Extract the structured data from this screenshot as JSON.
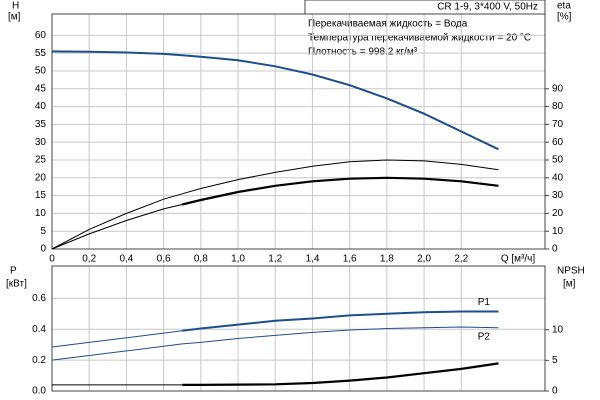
{
  "chart_data": [
    {
      "type": "line",
      "xlabel": "Q [м³/ч]",
      "ylabel": [
        "H",
        "[м]"
      ],
      "y2label": [
        "eta",
        "[%]"
      ],
      "title": "CR 1-9, 3*400 V, 50Hz",
      "annotations": [
        "Перекачиваемая жидкость = Вода",
        "Температура перекачиваемой жидкости = 20 °C",
        "Плотность = 998.2 кг/м³"
      ],
      "xlim": [
        0,
        2.65
      ],
      "xticks": [
        0,
        {
          "value": 0.2,
          "label": "0,2"
        },
        {
          "value": 0.4,
          "label": "0,4"
        },
        {
          "value": 0.6,
          "label": "0,6"
        },
        {
          "value": 0.8,
          "label": "0,8"
        },
        {
          "value": 1.0,
          "label": "1,0"
        },
        {
          "value": 1.2,
          "label": "1,2"
        },
        {
          "value": 1.4,
          "label": "1,4"
        },
        {
          "value": 1.6,
          "label": "1,6"
        },
        {
          "value": 1.8,
          "label": "1,8"
        },
        {
          "value": 2.0,
          "label": "2,0"
        },
        {
          "value": 2.2,
          "label": "2,2"
        }
      ],
      "ylim": [
        0,
        66
      ],
      "yticks": [
        0,
        5,
        10,
        15,
        20,
        25,
        30,
        35,
        40,
        45,
        50,
        55,
        60
      ],
      "y2lim": [
        0,
        132
      ],
      "y2ticks": [
        0,
        10,
        20,
        30,
        40,
        50,
        60,
        70,
        80,
        90
      ],
      "grid": true,
      "x": [
        0,
        0.2,
        0.4,
        0.6,
        0.7,
        0.8,
        1.0,
        1.2,
        1.4,
        1.6,
        1.8,
        2.0,
        2.2,
        2.4
      ],
      "series": [
        {
          "color": "#1f4e8c",
          "width": 2,
          "values": [
            55.5,
            55.4,
            55.2,
            54.8,
            54.4,
            54,
            53,
            51.3,
            49,
            46,
            42.3,
            38,
            33,
            28
          ]
        },
        {
          "color": "#000000",
          "width": 1,
          "axis": "y2",
          "values": [
            0,
            11,
            20,
            28,
            31,
            34,
            39,
            43,
            46.5,
            49,
            50,
            49.5,
            47.5,
            44.5
          ]
        },
        {
          "color": "#000000",
          "width": 1,
          "axis": "y2",
          "values": [
            0,
            8.5,
            16,
            22.5,
            25,
            null,
            null,
            null,
            null,
            null,
            null,
            null,
            null,
            null
          ]
        },
        {
          "color": "#000000",
          "width": 2.2,
          "axis": "y2",
          "values": [
            null,
            null,
            null,
            null,
            25,
            27.5,
            32,
            35.5,
            38,
            39.5,
            40,
            39.5,
            38,
            35.5
          ]
        }
      ]
    },
    {
      "type": "line",
      "ylabel": [
        "P",
        "[кВт]"
      ],
      "y2label": [
        "NPSH",
        "[м]"
      ],
      "xlim": [
        0,
        2.65
      ],
      "ylim": [
        0,
        0.81
      ],
      "yticks": [
        {
          "value": 0,
          "label": "0.0"
        },
        0.2,
        0.4,
        0.6
      ],
      "y2lim": [
        0,
        20.4
      ],
      "y2ticks": [
        0,
        5,
        10
      ],
      "grid": true,
      "x": [
        0,
        0.2,
        0.4,
        0.6,
        0.7,
        0.8,
        1.0,
        1.2,
        1.4,
        1.6,
        1.8,
        2.0,
        2.2,
        2.4
      ],
      "series": [
        {
          "color": "#1f4e8c",
          "width": 1,
          "values": [
            0.285,
            0.315,
            0.345,
            0.375,
            0.39,
            null,
            null,
            null,
            null,
            null,
            null,
            null,
            null,
            null
          ]
        },
        {
          "name": "P1",
          "color": "#1f4e8c",
          "width": 2,
          "values": [
            null,
            null,
            null,
            null,
            0.39,
            0.405,
            0.43,
            0.455,
            0.47,
            0.49,
            0.5,
            0.51,
            0.515,
            0.515
          ]
        },
        {
          "name": "P2",
          "color": "#1f4e8c",
          "width": 1,
          "values": [
            0.2,
            0.23,
            0.26,
            0.29,
            0.305,
            0.315,
            0.34,
            0.36,
            0.38,
            0.395,
            0.405,
            0.41,
            0.415,
            0.41
          ]
        },
        {
          "color": "#000000",
          "width": 1,
          "axis": "y2",
          "values": [
            1,
            1,
            1,
            1,
            1,
            null,
            null,
            null,
            null,
            null,
            null,
            null,
            null,
            null
          ]
        },
        {
          "color": "#000000",
          "width": 2.2,
          "axis": "y2",
          "values": [
            null,
            null,
            null,
            null,
            1,
            1,
            1.05,
            1.1,
            1.3,
            1.7,
            2.2,
            2.9,
            3.6,
            4.5
          ]
        }
      ]
    }
  ]
}
